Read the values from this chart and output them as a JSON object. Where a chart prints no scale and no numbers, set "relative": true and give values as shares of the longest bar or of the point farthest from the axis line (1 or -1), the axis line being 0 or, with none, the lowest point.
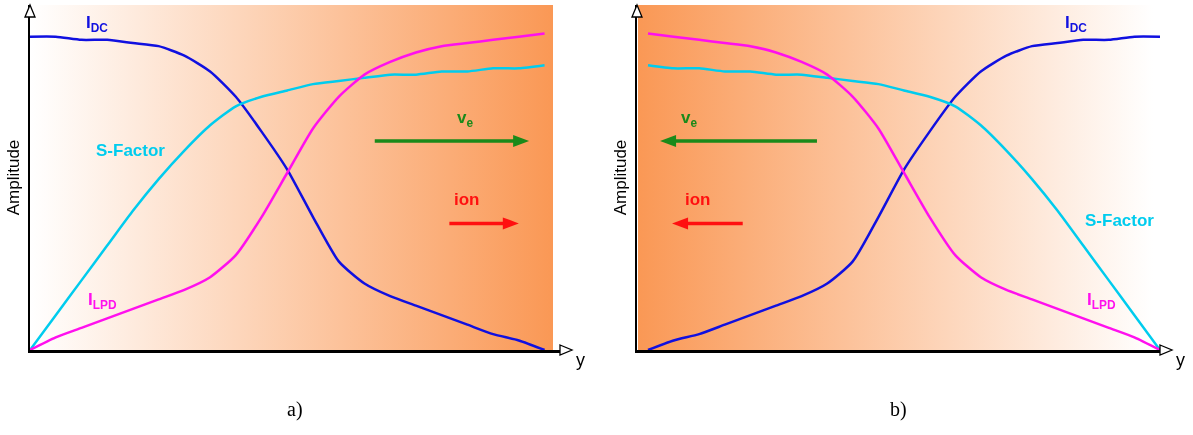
{
  "chart_data": [
    {
      "type": "line",
      "relative": true,
      "xlabel": "y",
      "ylabel": "Amplitude",
      "categories": [
        null,
        null,
        null,
        null,
        null,
        null,
        null,
        null,
        null,
        null,
        null,
        null,
        null,
        null,
        null,
        null,
        null,
        null,
        null,
        null,
        null
      ],
      "legend": false,
      "marker": "none",
      "line_style": "solid",
      "annotations": [
        "v$_{e}$",
        "ion",
        "a)"
      ],
      "series": [
        {
          "name": "I$_{DC}$",
          "color": "#1010e0",
          "values": [
            0.99,
            0.99,
            0.98,
            0.98,
            0.97,
            0.96,
            0.93,
            0.88,
            0.8,
            0.69,
            0.57,
            0.42,
            0.28,
            0.21,
            0.17,
            0.14,
            0.11,
            0.08,
            0.05,
            0.03,
            0.0
          ]
        },
        {
          "name": "S-Factor",
          "color": "#00ccee",
          "values": [
            0,
            0.11,
            0.22,
            0.33,
            0.44,
            0.54,
            0.63,
            0.71,
            0.77,
            0.8,
            0.82,
            0.84,
            0.85,
            0.86,
            0.87,
            0.87,
            0.88,
            0.88,
            0.89,
            0.89,
            0.9
          ]
        },
        {
          "name": "I$_{LPD}$",
          "color": "#ff10ee",
          "values": [
            0,
            0.04,
            0.07,
            0.1,
            0.13,
            0.16,
            0.19,
            0.23,
            0.3,
            0.42,
            0.56,
            0.7,
            0.8,
            0.87,
            0.91,
            0.94,
            0.96,
            0.97,
            0.98,
            0.99,
            1.0
          ]
        }
      ]
    },
    {
      "type": "line",
      "relative": true,
      "xlabel": "y",
      "ylabel": "Amplitude",
      "categories": [
        null,
        null,
        null,
        null,
        null,
        null,
        null,
        null,
        null,
        null,
        null,
        null,
        null,
        null,
        null,
        null,
        null,
        null,
        null,
        null,
        null
      ],
      "legend": false,
      "marker": "none",
      "line_style": "solid",
      "annotations": [
        "v$_{e}$",
        "ion",
        "b)"
      ],
      "series": [
        {
          "name": "I$_{DC}$",
          "color": "#1010e0",
          "values": [
            0.0,
            0.03,
            0.05,
            0.08,
            0.11,
            0.14,
            0.17,
            0.21,
            0.28,
            0.42,
            0.57,
            0.69,
            0.8,
            0.88,
            0.93,
            0.96,
            0.97,
            0.98,
            0.98,
            0.99,
            0.99
          ]
        },
        {
          "name": "S-Factor",
          "color": "#00ccee",
          "values": [
            0.9,
            0.89,
            0.89,
            0.88,
            0.88,
            0.87,
            0.87,
            0.86,
            0.85,
            0.84,
            0.82,
            0.8,
            0.77,
            0.71,
            0.63,
            0.54,
            0.44,
            0.33,
            0.22,
            0.11,
            0
          ]
        },
        {
          "name": "I$_{LPD}$",
          "color": "#ff10ee",
          "values": [
            1.0,
            0.99,
            0.98,
            0.97,
            0.96,
            0.94,
            0.91,
            0.87,
            0.8,
            0.7,
            0.56,
            0.42,
            0.3,
            0.23,
            0.19,
            0.16,
            0.13,
            0.1,
            0.07,
            0.04,
            0
          ]
        }
      ]
    }
  ]
}
